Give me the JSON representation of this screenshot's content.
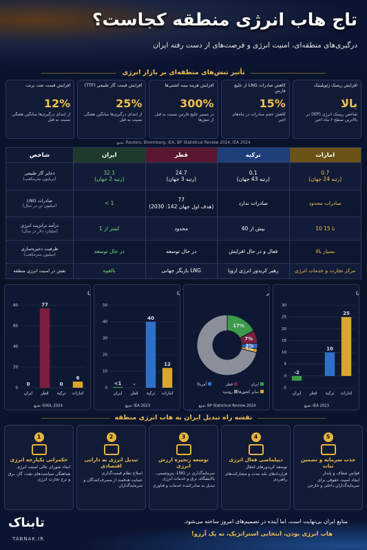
{
  "header": {
    "title": "تاج هاب انرژی منطقه کجاست؟",
    "subtitle": "درگیری‌های منطقه‌ای، امنیت انرژی و فرصت‌های از دست رفته ایران"
  },
  "impact": {
    "title": "تأثیر تنش‌های منطقه‌ای بر بازار انرژی",
    "cards": [
      {
        "title": "افزایش ریسک ژئوپلیتیک",
        "value": "بالا",
        "desc": "شاخص ریسک انرژی (IEP) در بالاترین سطح ۶ ماه اخیر"
      },
      {
        "title": "کاهش صادرات LNG از خلیج فارس",
        "value": "15%",
        "desc": "کاهش حجم صادرات در ماه‌های اخیر"
      },
      {
        "title": "افزایش هزینه بیمه کشتی‌ها",
        "value": "300%",
        "desc": "در مسیر خلیج فارس نسبت به قبل از تنش‌ها"
      },
      {
        "title": "افزایش قیمت گاز طبیعی (TTF)",
        "value": "25%",
        "desc": "از ابتدای درگیری‌ها میانگین هفتگی نسبت به قبل"
      },
      {
        "title": "افزایش قیمت نفت برنت",
        "value": "12%",
        "desc": "از ابتدای درگیری‌ها میانگین هفتگی نسبت به قبل"
      }
    ],
    "source": "منبع: Reuters, Bloomberg, IEA, BP Statistical Review 2024, IEA 2024"
  },
  "table": {
    "columns": [
      "شاخص",
      "ایران",
      "قطر",
      "ترکیه",
      "امارات"
    ],
    "rows": [
      {
        "label": "ذخایر گاز طبیعی",
        "unit": "(تریلیون مترمکعب)",
        "cells": [
          "32.1\n(رتبه 2 جهان)",
          "24.7\n(رتبه 3 جهان)",
          "0.1\n(رتبه 43 جهان)",
          "0.7\n(رتبه 24 جهان)"
        ]
      },
      {
        "label": "صادرات LNG",
        "unit": "(میلیون تن در سال)",
        "cells": [
          "< 1",
          "77\n(هدف اول جهان 142: 2030)",
          "صادرات ندارد",
          "صادرات محدود"
        ]
      },
      {
        "label": "درآمد ترانزیت انرژی",
        "unit": "(میلیارد دلار در سال)",
        "cells": [
          "کمتر از 1",
          "محدود",
          "بیش از 40",
          "10 تا 15"
        ]
      },
      {
        "label": "ظرفیت ذخیره‌سازی",
        "unit": "(میلیون مترمکعب)",
        "cells": [
          "در حال توسعه",
          "در حال توسعه",
          "فعال و در حال افزایش",
          "بسیار بالا"
        ]
      },
      {
        "label": "نقش در امنیت انرژی منطقه",
        "unit": null,
        "cells": [
          "بالقوه",
          "بازیگر جهانی LNG",
          "رهبر کریدور انرژی اروپا",
          "مرکز تجارت و خدمات انرژی"
        ]
      }
    ]
  },
  "chart_data": [
    {
      "type": "bar",
      "title": "صادرات LNG (میلیون تن در سال)",
      "categories": [
        "ایران",
        "قطر",
        "ترکیه",
        "امارات"
      ],
      "values": [
        0,
        77,
        0,
        6
      ],
      "colors": [
        "#3d9a4a",
        "#7a1f3d",
        "#2f6fc7",
        "#d9a52e"
      ],
      "ylim": [
        0,
        80
      ],
      "yticks": [
        0,
        20,
        40,
        60,
        80
      ],
      "grid": true,
      "source": "منبع: GIIGL 2024"
    },
    {
      "type": "bar",
      "title": "درآمد ترانزیت انرژی (میلیارد دلار در سال)",
      "categories": [
        "ایران",
        "قطر",
        "ترکیه",
        "امارات"
      ],
      "values": [
        0.5,
        null,
        40,
        12
      ],
      "value_labels": [
        "<1",
        "-",
        "40",
        "12"
      ],
      "colors": [
        "#3d9a4a",
        "#7a1f3d",
        "#2f6fc7",
        "#d9a52e"
      ],
      "ylim": [
        0,
        50
      ],
      "yticks": [
        0,
        10,
        20,
        30,
        40,
        50
      ],
      "grid": true,
      "source": "منبع: IEA 2023"
    },
    {
      "type": "pie",
      "title": "سهم از تجارت جهانی گاز",
      "categories": [
        "ایران",
        "قطر",
        "آمریکا",
        "سایر کشورها",
        "روسیه"
      ],
      "values": [
        17,
        7,
        3,
        2,
        71
      ],
      "value_labels": [
        "17%",
        "7%",
        "3%",
        "2%",
        null
      ],
      "colors": [
        "#3d9a4a",
        "#7a1f3d",
        "#2f6fc7",
        "#d9a52e",
        "#8a8f99"
      ],
      "source": "منبع: BP Statistical Review 2024"
    },
    {
      "type": "bar",
      "title": "صادرات برق (میلیارد کیلووات‌ساعت در سال)",
      "categories": [
        "ایران",
        "قطر",
        "ترکیه",
        "امارات"
      ],
      "values": [
        -2,
        null,
        10,
        25
      ],
      "colors": [
        "#3d9a4a",
        "#7a1f3d",
        "#2f6fc7",
        "#d9a52e"
      ],
      "ylim": [
        -5,
        30
      ],
      "yticks": [
        -5,
        0,
        5,
        10,
        15,
        20,
        25,
        30
      ],
      "grid": true,
      "source": "منبع: IEA 2023"
    }
  ],
  "roadmap": {
    "title": "نقشه راه تبدیل ایران به هاب انرژی منطقه",
    "steps": [
      {
        "number": 1,
        "title": "حکمرانی یکپارچه انرژی",
        "items": [
          "ایجاد شورای عالی امنیت انرژی",
          "هماهنگی سیاست‌های نفت، گاز، برق و نرخ تجارت انرژی"
        ]
      },
      {
        "number": 2,
        "title": "تبدیل انرژی به دارایی اقتصادی",
        "items": [
          "اصلاح نظام قیمت‌گذاری",
          "حمایت هدفمند از مصرف‌کنندگان و سرمایه‌گذاران"
        ]
      },
      {
        "number": 3,
        "title": "توسعه زنجیره ارزش انرژی",
        "items": [
          "سرمایه‌گذاری در LNG، پتروشیمی، پالایشگاه، برق و خدمات انرژی",
          "تبدیل به صادرکننده خدمات و فناوری"
        ]
      },
      {
        "number": 4,
        "title": "دیپلماسی فعال انرژی",
        "items": [
          "توسعه کریدورهای انتقال",
          "قراردادهای بلند مدت و مشارکت‌های راهبردی"
        ]
      },
      {
        "number": 5,
        "title": "جذب سرمایه و تضمین ثبات",
        "items": [
          "قوانین شفاف و پایدار",
          "ایجاد امنیت حقوقی برای سرمایه‌گذاران داخلی و خارجی"
        ]
      }
    ]
  },
  "footer": {
    "quote": "منابع ایران بی‌نهایت است، اما آینده در تصمیم‌های امروز ساخته می‌شود.",
    "slogan": "هاب انرژی بودن، انتخابی استراتژیک، نه یک آرزو!",
    "brand": "تابناک",
    "url": "TABNAK.IR"
  }
}
